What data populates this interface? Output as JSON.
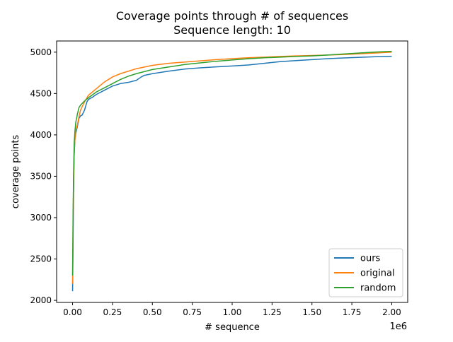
{
  "chart_data": {
    "type": "line",
    "title_line1": "Coverage points through # of sequences",
    "title_line2": "Sequence length: 10",
    "xlabel": "# sequence",
    "ylabel": "coverage points",
    "x_scale_label": "1e6",
    "xlim": [
      -0.1,
      2.1
    ],
    "ylim": [
      1975,
      5135
    ],
    "x_ticks": [
      0.0,
      0.25,
      0.5,
      0.75,
      1.0,
      1.25,
      1.5,
      1.75,
      2.0
    ],
    "x_tick_labels": [
      "0.00",
      "0.25",
      "0.50",
      "0.75",
      "1.00",
      "1.25",
      "1.50",
      "1.75",
      "2.00"
    ],
    "y_ticks": [
      2000,
      2500,
      3000,
      3500,
      4000,
      4500,
      5000
    ],
    "y_tick_labels": [
      "2000",
      "2500",
      "3000",
      "3500",
      "4000",
      "4500",
      "5000"
    ],
    "grid": false,
    "legend_position": "lower-right",
    "series": [
      {
        "name": "ours",
        "color": "#1f77b4",
        "x": [
          0.0,
          0.003,
          0.006,
          0.01,
          0.015,
          0.02,
          0.03,
          0.04,
          0.05,
          0.06,
          0.075,
          0.09,
          0.1,
          0.12,
          0.15,
          0.2,
          0.25,
          0.3,
          0.35,
          0.4,
          0.43,
          0.45,
          0.5,
          0.6,
          0.7,
          0.8,
          0.9,
          1.0,
          1.1,
          1.2,
          1.3,
          1.4,
          1.5,
          1.6,
          1.7,
          1.8,
          1.9,
          2.0
        ],
        "values": [
          2110,
          2700,
          3300,
          3750,
          3950,
          4020,
          4100,
          4200,
          4230,
          4240,
          4300,
          4400,
          4430,
          4450,
          4490,
          4540,
          4590,
          4620,
          4635,
          4660,
          4700,
          4720,
          4740,
          4770,
          4795,
          4810,
          4822,
          4833,
          4845,
          4865,
          4885,
          4898,
          4910,
          4922,
          4930,
          4937,
          4945,
          4950
        ]
      },
      {
        "name": "original",
        "color": "#ff7f0e",
        "x": [
          0.0,
          0.003,
          0.006,
          0.01,
          0.015,
          0.02,
          0.03,
          0.04,
          0.05,
          0.075,
          0.1,
          0.15,
          0.2,
          0.25,
          0.3,
          0.35,
          0.4,
          0.5,
          0.6,
          0.7,
          0.8,
          0.9,
          1.0,
          1.1,
          1.2,
          1.3,
          1.4,
          1.5,
          1.6,
          1.7,
          1.8,
          1.9,
          2.0
        ],
        "values": [
          2200,
          2900,
          3400,
          3800,
          3950,
          4050,
          4120,
          4220,
          4300,
          4400,
          4480,
          4560,
          4640,
          4700,
          4740,
          4770,
          4800,
          4840,
          4865,
          4880,
          4895,
          4910,
          4922,
          4932,
          4940,
          4948,
          4955,
          4960,
          4965,
          4972,
          4980,
          4990,
          5000
        ]
      },
      {
        "name": "random",
        "color": "#2ca02c",
        "x": [
          0.0,
          0.003,
          0.006,
          0.01,
          0.015,
          0.02,
          0.03,
          0.04,
          0.05,
          0.075,
          0.1,
          0.15,
          0.2,
          0.25,
          0.3,
          0.35,
          0.4,
          0.5,
          0.6,
          0.7,
          0.8,
          0.9,
          1.0,
          1.1,
          1.2,
          1.3,
          1.4,
          1.5,
          1.6,
          1.7,
          1.8,
          1.9,
          2.0
        ],
        "values": [
          2300,
          3000,
          3500,
          3900,
          4050,
          4150,
          4250,
          4330,
          4360,
          4410,
          4450,
          4520,
          4570,
          4620,
          4670,
          4710,
          4740,
          4790,
          4820,
          4850,
          4870,
          4890,
          4905,
          4920,
          4932,
          4940,
          4948,
          4955,
          4965,
          4978,
          4990,
          5002,
          5010
        ]
      }
    ]
  }
}
